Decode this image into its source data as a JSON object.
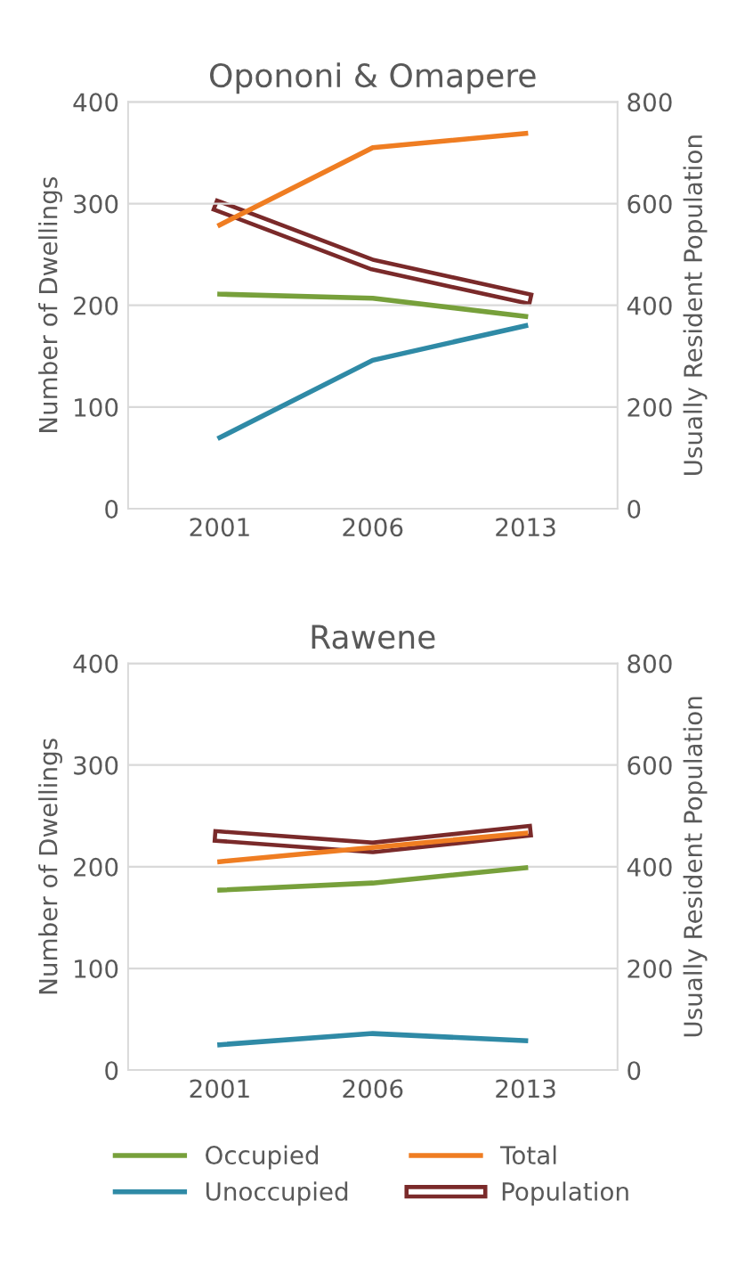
{
  "chart_data": [
    {
      "type": "line",
      "title": "Opononi & Omapere",
      "ylabel": "Number of Dwellings",
      "y2label": "Usually Resident Population",
      "categories": [
        "2001",
        "2006",
        "2013"
      ],
      "ylim": [
        0,
        400
      ],
      "yticks": [
        0,
        100,
        200,
        300,
        400
      ],
      "y2lim": [
        0,
        800
      ],
      "y2ticks": [
        0,
        200,
        400,
        600,
        800
      ],
      "grid": "y",
      "series": [
        {
          "color": "#77a03b",
          "values": [
            211,
            207,
            189
          ]
        },
        {
          "color": "#2f8aa6",
          "values": [
            70,
            146,
            180
          ]
        },
        {
          "color": "#ef7d22",
          "values": [
            279,
            355,
            369
          ]
        },
        {
          "color": "#7a2a2a",
          "axis": "y2",
          "values": [
            594,
            480,
            414
          ]
        }
      ]
    },
    {
      "type": "line",
      "title": "Rawene",
      "ylabel": "Number of Dwellings",
      "y2label": "Usually Resident Population",
      "categories": [
        "2001",
        "2006",
        "2013"
      ],
      "ylim": [
        0,
        400
      ],
      "yticks": [
        0,
        100,
        200,
        300,
        400
      ],
      "y2lim": [
        0,
        800
      ],
      "y2ticks": [
        0,
        200,
        400,
        600,
        800
      ],
      "grid": "y",
      "legend": "bottom",
      "series": [
        {
          "name": "Occupied",
          "color": "#77a03b",
          "values": [
            177,
            184,
            199
          ]
        },
        {
          "name": "Unoccupied",
          "color": "#2f8aa6",
          "values": [
            25,
            36,
            29
          ]
        },
        {
          "name": "Total",
          "color": "#ef7d22",
          "values": [
            205,
            219,
            233
          ]
        },
        {
          "name": "Population",
          "color": "#7a2a2a",
          "axis": "y2",
          "values": [
            460,
            438,
            470
          ]
        }
      ]
    }
  ]
}
